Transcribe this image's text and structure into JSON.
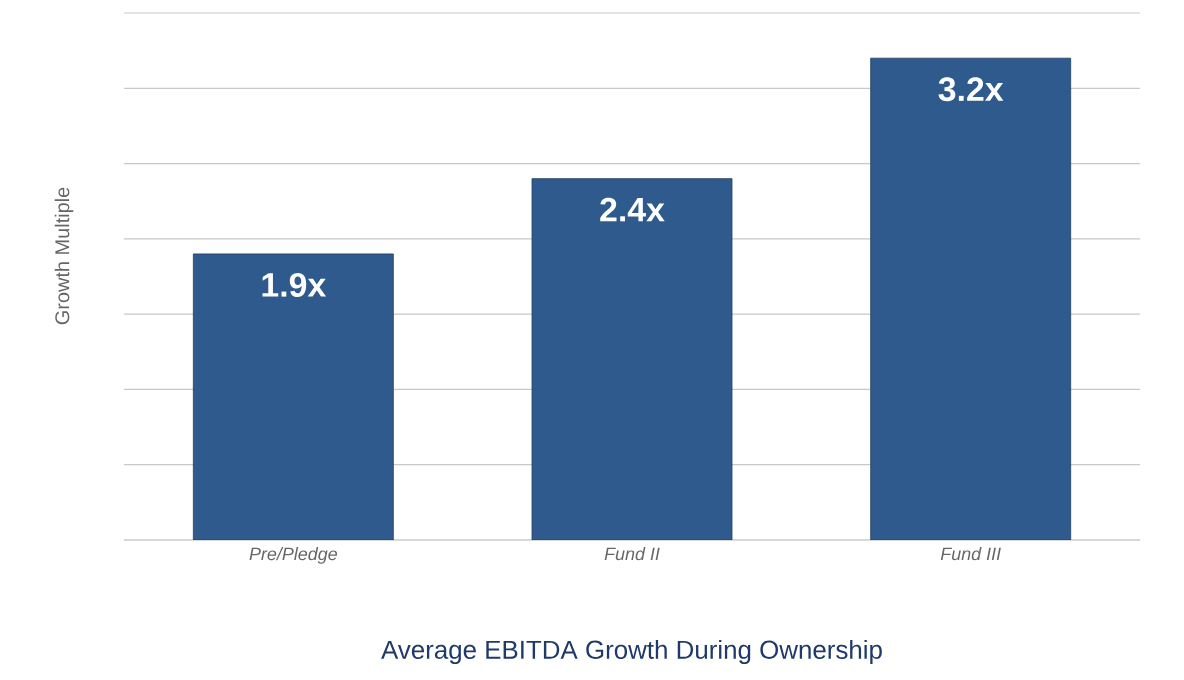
{
  "chart_data": {
    "type": "bar",
    "title": "Average EBITDA Growth During Ownership",
    "ylabel": "Growth Multiple",
    "categories": [
      "Pre/Pledge",
      "Fund II",
      "Fund III"
    ],
    "values": [
      1.9,
      2.4,
      3.2
    ],
    "value_labels": [
      "1.9x",
      "2.4x",
      "3.2x"
    ],
    "color": "#2f5a8e",
    "tick_labels": "x",
    "grid": "y"
  }
}
